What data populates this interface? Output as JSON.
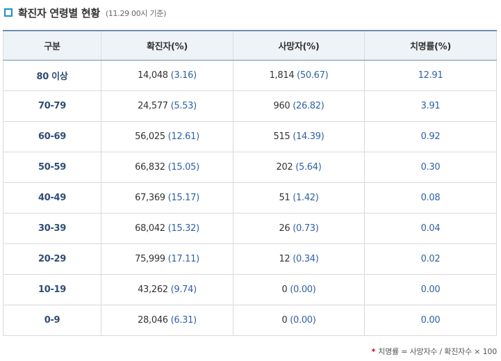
{
  "header": {
    "title": "확진자 연령별 현황",
    "subtitle": "(11.29 00시 기준)"
  },
  "table": {
    "columns": [
      "구분",
      "확진자(%)",
      "사망자(%)",
      "치명률(%)"
    ],
    "rows": [
      {
        "age": "80 이상",
        "cases": "14,048",
        "cases_pct": "(3.16)",
        "deaths": "1,814",
        "deaths_pct": "(50.67)",
        "fatality": "12.91"
      },
      {
        "age": "70-79",
        "cases": "24,577",
        "cases_pct": "(5.53)",
        "deaths": "960",
        "deaths_pct": "(26.82)",
        "fatality": "3.91"
      },
      {
        "age": "60-69",
        "cases": "56,025",
        "cases_pct": "(12.61)",
        "deaths": "515",
        "deaths_pct": "(14.39)",
        "fatality": "0.92"
      },
      {
        "age": "50-59",
        "cases": "66,832",
        "cases_pct": "(15.05)",
        "deaths": "202",
        "deaths_pct": "(5.64)",
        "fatality": "0.30"
      },
      {
        "age": "40-49",
        "cases": "67,369",
        "cases_pct": "(15.17)",
        "deaths": "51",
        "deaths_pct": "(1.42)",
        "fatality": "0.08"
      },
      {
        "age": "30-39",
        "cases": "68,042",
        "cases_pct": "(15.32)",
        "deaths": "26",
        "deaths_pct": "(0.73)",
        "fatality": "0.04"
      },
      {
        "age": "20-29",
        "cases": "75,999",
        "cases_pct": "(17.11)",
        "deaths": "12",
        "deaths_pct": "(0.34)",
        "fatality": "0.02"
      },
      {
        "age": "10-19",
        "cases": "43,262",
        "cases_pct": "(9.74)",
        "deaths": "0",
        "deaths_pct": "(0.00)",
        "fatality": "0.00"
      },
      {
        "age": "0-9",
        "cases": "28,046",
        "cases_pct": "(6.31)",
        "deaths": "0",
        "deaths_pct": "(0.00)",
        "fatality": "0.00"
      }
    ]
  },
  "footnote": {
    "star": "*",
    "text": "치명률 = 사망자수 / 확진자수 × 100"
  },
  "colors": {
    "accent": "#1c8fc7",
    "header_bg": "#eef3f8",
    "value_blue": "#2f60a8",
    "age_navy": "#2f4d76",
    "star_red": "#d0021b"
  },
  "icons": {
    "heading_bullet": "square-bullet-icon"
  }
}
